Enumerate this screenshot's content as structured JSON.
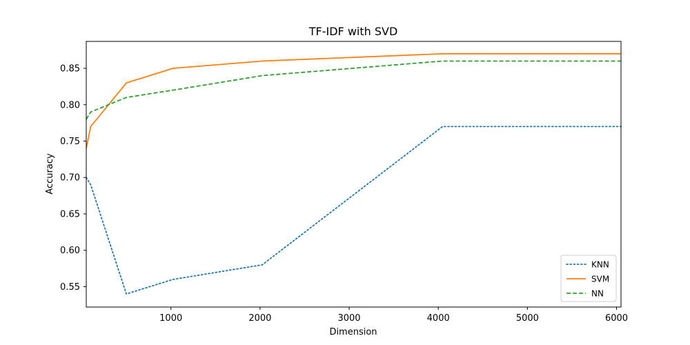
{
  "chart_data": {
    "type": "line",
    "title": "TF-IDF with SVD",
    "xlabel": "Dimension",
    "ylabel": "Accuracy",
    "xlim": [
      50,
      6050
    ],
    "ylim": [
      0.522,
      0.887
    ],
    "xticks": [
      1000,
      2000,
      3000,
      4000,
      5000,
      6000
    ],
    "xtick_labels": [
      "1000",
      "2000",
      "3000",
      "4000",
      "5000",
      "6000"
    ],
    "yticks": [
      0.55,
      0.6,
      0.65,
      0.7,
      0.75,
      0.8,
      0.85
    ],
    "ytick_labels": [
      "0.55",
      "0.60",
      "0.65",
      "0.70",
      "0.75",
      "0.80",
      "0.85"
    ],
    "grid": false,
    "legend": "lower-right",
    "x": [
      50,
      100,
      500,
      1024,
      2024,
      4048,
      6050
    ],
    "series": [
      {
        "name": "KNN",
        "color": "#1f77b4",
        "style": "dotted",
        "values": [
          0.7,
          0.69,
          0.54,
          0.56,
          0.58,
          0.77,
          0.77
        ]
      },
      {
        "name": "SVM",
        "color": "#ff7f0e",
        "style": "solid",
        "values": [
          0.74,
          0.77,
          0.83,
          0.85,
          0.86,
          0.87,
          0.87
        ]
      },
      {
        "name": "NN",
        "color": "#2ca02c",
        "style": "dashed",
        "values": [
          0.78,
          0.79,
          0.81,
          0.82,
          0.84,
          0.86,
          0.86
        ]
      }
    ]
  }
}
